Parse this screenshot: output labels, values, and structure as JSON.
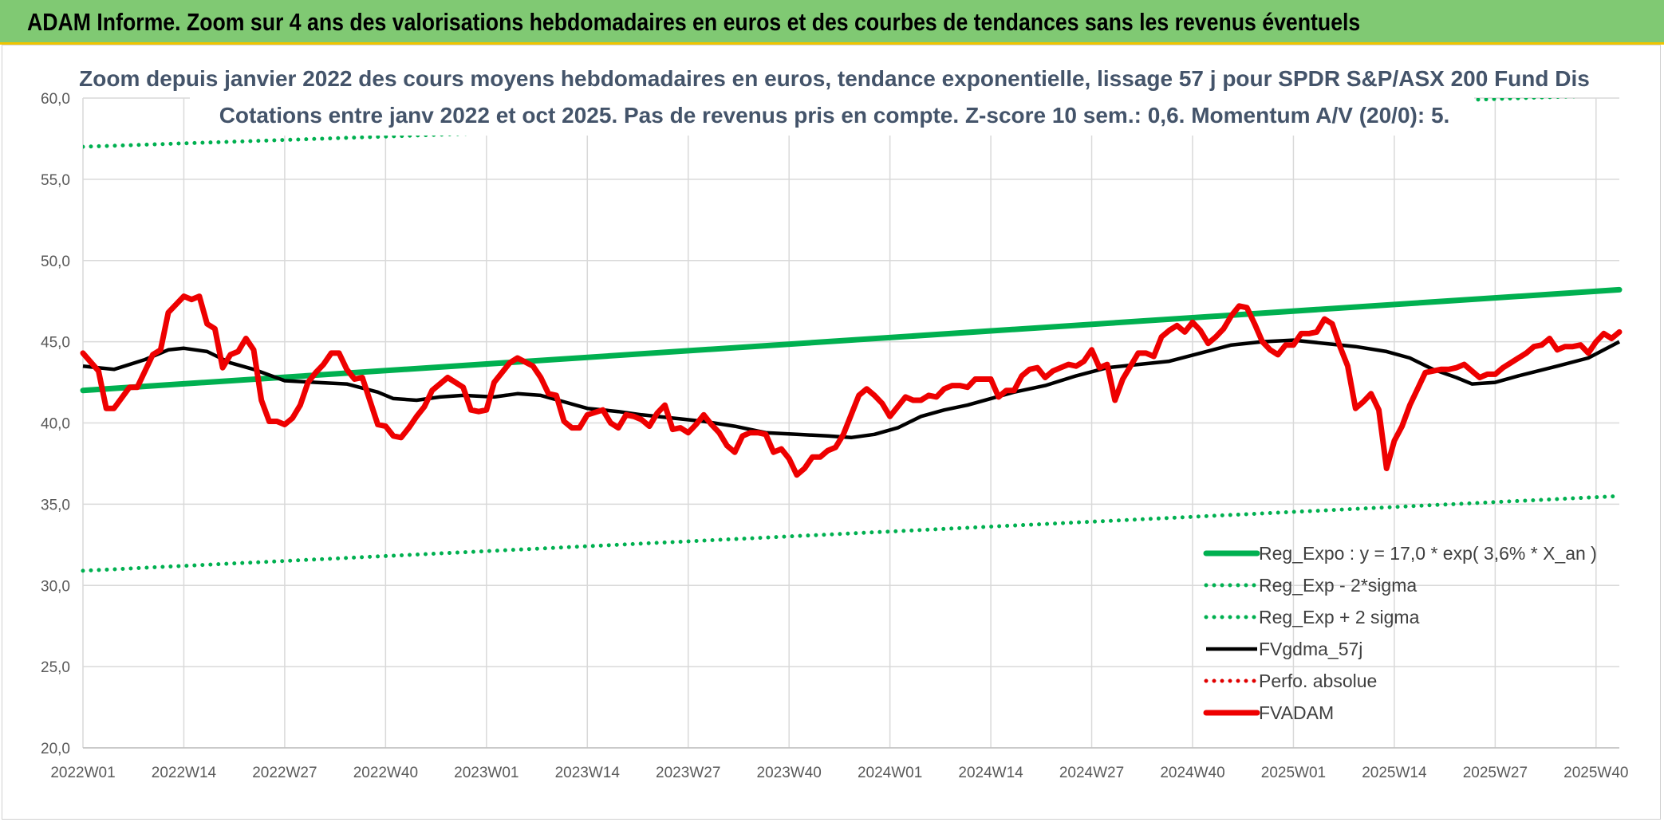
{
  "header": {
    "title": "ADAM Informe. Zoom sur 4 ans des valorisations hebdomadaires en euros et des courbes de tendances sans les revenus éventuels"
  },
  "chart_data": {
    "type": "line",
    "title_lines": [
      "Zoom depuis janvier 2022 des cours moyens hebdomadaires en euros, tendance exponentielle, lissage 57 j pour SPDR S&P/ASX 200 Fund Dis",
      "Cotations entre janv 2022 et oct 2025. Pas de revenus pris en compte. Z-score 10 sem.: 0,6. Momentum A/V (20/0): 5."
    ],
    "xlabel": "",
    "ylabel": "",
    "ylim": [
      20,
      60
    ],
    "y_ticks": [
      "20,0",
      "25,0",
      "30,0",
      "35,0",
      "40,0",
      "45,0",
      "50,0",
      "55,0",
      "60,0"
    ],
    "x_tick_labels": [
      "2022W01",
      "2022W14",
      "2022W27",
      "2022W40",
      "2023W01",
      "2023W14",
      "2023W27",
      "2023W40",
      "2024W01",
      "2024W14",
      "2024W27",
      "2024W40",
      "2025W01",
      "2025W14",
      "2025W27",
      "2025W40"
    ],
    "x_range_weeks": [
      0,
      198
    ],
    "grid": true,
    "legend_position": "bottom-right",
    "series": [
      {
        "name": "Reg_Expo : y = 17,0 * exp( 3,6% *  X_an )",
        "color": "#00b050",
        "style": "solid-thick",
        "linear_from_to": [
          [
            0,
            42.0
          ],
          [
            198,
            48.2
          ]
        ]
      },
      {
        "name": "Reg_Exp - 2*sigma",
        "color": "#00b050",
        "style": "dotted",
        "linear_from_to": [
          [
            0,
            30.9
          ],
          [
            198,
            35.5
          ]
        ]
      },
      {
        "name": "Reg_Exp + 2 sigma",
        "color": "#00b050",
        "style": "dotted",
        "linear_from_to": [
          [
            0,
            57.0
          ],
          [
            198,
            60.2
          ]
        ]
      },
      {
        "name": "FVgdma_57j",
        "color": "#000000",
        "style": "solid",
        "points": [
          [
            0,
            43.5
          ],
          [
            4,
            43.3
          ],
          [
            8,
            43.9
          ],
          [
            11,
            44.5
          ],
          [
            13,
            44.6
          ],
          [
            16,
            44.4
          ],
          [
            19,
            43.7
          ],
          [
            22,
            43.3
          ],
          [
            26,
            42.6
          ],
          [
            30,
            42.5
          ],
          [
            34,
            42.4
          ],
          [
            38,
            41.9
          ],
          [
            40,
            41.5
          ],
          [
            43,
            41.4
          ],
          [
            46,
            41.6
          ],
          [
            49,
            41.7
          ],
          [
            53,
            41.6
          ],
          [
            56,
            41.8
          ],
          [
            59,
            41.7
          ],
          [
            62,
            41.3
          ],
          [
            65,
            40.9
          ],
          [
            69,
            40.7
          ],
          [
            72,
            40.5
          ],
          [
            76,
            40.3
          ],
          [
            80,
            40.1
          ],
          [
            84,
            39.8
          ],
          [
            88,
            39.4
          ],
          [
            92,
            39.3
          ],
          [
            96,
            39.2
          ],
          [
            99,
            39.1
          ],
          [
            102,
            39.3
          ],
          [
            105,
            39.7
          ],
          [
            108,
            40.4
          ],
          [
            111,
            40.8
          ],
          [
            114,
            41.1
          ],
          [
            117,
            41.5
          ],
          [
            120,
            41.9
          ],
          [
            124,
            42.3
          ],
          [
            128,
            42.9
          ],
          [
            132,
            43.4
          ],
          [
            136,
            43.6
          ],
          [
            140,
            43.8
          ],
          [
            144,
            44.3
          ],
          [
            148,
            44.8
          ],
          [
            152,
            45.0
          ],
          [
            156,
            45.1
          ],
          [
            160,
            44.9
          ],
          [
            164,
            44.7
          ],
          [
            168,
            44.4
          ],
          [
            171,
            44.0
          ],
          [
            174,
            43.3
          ],
          [
            177,
            42.8
          ],
          [
            179,
            42.4
          ],
          [
            182,
            42.5
          ],
          [
            185,
            42.9
          ],
          [
            190,
            43.5
          ],
          [
            194,
            44.0
          ],
          [
            198,
            45.0
          ]
        ]
      },
      {
        "name": "Perfo. absolue",
        "color": "#e00000",
        "style": "dotted"
      },
      {
        "name": "FVADAM",
        "color": "#ee0000",
        "style": "solid-thick",
        "points": [
          [
            0,
            44.3
          ],
          [
            2,
            43.2
          ],
          [
            3,
            40.9
          ],
          [
            4,
            40.9
          ],
          [
            6,
            42.2
          ],
          [
            7,
            42.2
          ],
          [
            9,
            44.2
          ],
          [
            10,
            44.5
          ],
          [
            11,
            46.8
          ],
          [
            13,
            47.8
          ],
          [
            14,
            47.6
          ],
          [
            15,
            47.8
          ],
          [
            16,
            46.1
          ],
          [
            17,
            45.8
          ],
          [
            18,
            43.4
          ],
          [
            19,
            44.2
          ],
          [
            20,
            44.4
          ],
          [
            21,
            45.2
          ],
          [
            22,
            44.5
          ],
          [
            23,
            41.4
          ],
          [
            24,
            40.1
          ],
          [
            25,
            40.1
          ],
          [
            26,
            39.9
          ],
          [
            27,
            40.3
          ],
          [
            28,
            41.1
          ],
          [
            29,
            42.5
          ],
          [
            30,
            43.1
          ],
          [
            31,
            43.6
          ],
          [
            32,
            44.3
          ],
          [
            33,
            44.3
          ],
          [
            34,
            43.3
          ],
          [
            35,
            42.7
          ],
          [
            36,
            42.8
          ],
          [
            38,
            39.9
          ],
          [
            39,
            39.8
          ],
          [
            40,
            39.2
          ],
          [
            41,
            39.1
          ],
          [
            42,
            39.7
          ],
          [
            43,
            40.4
          ],
          [
            44,
            41.0
          ],
          [
            45,
            42.0
          ],
          [
            47,
            42.8
          ],
          [
            49,
            42.2
          ],
          [
            50,
            40.8
          ],
          [
            51,
            40.7
          ],
          [
            52,
            40.8
          ],
          [
            53,
            42.5
          ],
          [
            55,
            43.7
          ],
          [
            56,
            44.0
          ],
          [
            58,
            43.5
          ],
          [
            59,
            42.8
          ],
          [
            60,
            41.8
          ],
          [
            61,
            41.7
          ],
          [
            62,
            40.1
          ],
          [
            63,
            39.7
          ],
          [
            64,
            39.7
          ],
          [
            65,
            40.5
          ],
          [
            67,
            40.8
          ],
          [
            68,
            40.0
          ],
          [
            69,
            39.7
          ],
          [
            70,
            40.5
          ],
          [
            71,
            40.4
          ],
          [
            72,
            40.2
          ],
          [
            73,
            39.8
          ],
          [
            74,
            40.6
          ],
          [
            75,
            41.1
          ],
          [
            76,
            39.6
          ],
          [
            77,
            39.7
          ],
          [
            78,
            39.4
          ],
          [
            79,
            39.9
          ],
          [
            80,
            40.5
          ],
          [
            81,
            39.9
          ],
          [
            82,
            39.4
          ],
          [
            83,
            38.6
          ],
          [
            84,
            38.2
          ],
          [
            85,
            39.2
          ],
          [
            86,
            39.4
          ],
          [
            87,
            39.4
          ],
          [
            88,
            39.3
          ],
          [
            89,
            38.2
          ],
          [
            90,
            38.4
          ],
          [
            91,
            37.8
          ],
          [
            92,
            36.8
          ],
          [
            93,
            37.2
          ],
          [
            94,
            37.9
          ],
          [
            95,
            37.9
          ],
          [
            96,
            38.3
          ],
          [
            97,
            38.5
          ],
          [
            98,
            39.3
          ],
          [
            99,
            40.5
          ],
          [
            100,
            41.7
          ],
          [
            101,
            42.1
          ],
          [
            102,
            41.7
          ],
          [
            103,
            41.2
          ],
          [
            104,
            40.4
          ],
          [
            105,
            41.0
          ],
          [
            106,
            41.6
          ],
          [
            107,
            41.4
          ],
          [
            108,
            41.4
          ],
          [
            109,
            41.7
          ],
          [
            110,
            41.6
          ],
          [
            111,
            42.1
          ],
          [
            112,
            42.3
          ],
          [
            113,
            42.3
          ],
          [
            114,
            42.2
          ],
          [
            115,
            42.7
          ],
          [
            116,
            42.7
          ],
          [
            117,
            42.7
          ],
          [
            118,
            41.6
          ],
          [
            119,
            42.0
          ],
          [
            120,
            42.0
          ],
          [
            121,
            42.9
          ],
          [
            122,
            43.3
          ],
          [
            123,
            43.4
          ],
          [
            124,
            42.8
          ],
          [
            125,
            43.2
          ],
          [
            126,
            43.4
          ],
          [
            127,
            43.6
          ],
          [
            128,
            43.5
          ],
          [
            129,
            43.8
          ],
          [
            130,
            44.5
          ],
          [
            131,
            43.4
          ],
          [
            132,
            43.6
          ],
          [
            133,
            41.4
          ],
          [
            134,
            42.7
          ],
          [
            135,
            43.5
          ],
          [
            136,
            44.3
          ],
          [
            137,
            44.3
          ],
          [
            138,
            44.1
          ],
          [
            139,
            45.3
          ],
          [
            140,
            45.7
          ],
          [
            141,
            46.0
          ],
          [
            142,
            45.6
          ],
          [
            143,
            46.2
          ],
          [
            144,
            45.7
          ],
          [
            145,
            44.9
          ],
          [
            146,
            45.3
          ],
          [
            147,
            45.8
          ],
          [
            148,
            46.6
          ],
          [
            149,
            47.2
          ],
          [
            150,
            47.1
          ],
          [
            151,
            46.1
          ],
          [
            152,
            45.0
          ],
          [
            153,
            44.5
          ],
          [
            154,
            44.2
          ],
          [
            155,
            44.8
          ],
          [
            156,
            44.8
          ],
          [
            157,
            45.5
          ],
          [
            158,
            45.5
          ],
          [
            159,
            45.6
          ],
          [
            160,
            46.4
          ],
          [
            161,
            46.1
          ],
          [
            162,
            44.7
          ],
          [
            163,
            43.5
          ],
          [
            164,
            40.9
          ],
          [
            165,
            41.3
          ],
          [
            166,
            41.8
          ],
          [
            167,
            40.8
          ],
          [
            168,
            37.2
          ],
          [
            169,
            38.9
          ],
          [
            170,
            39.8
          ],
          [
            171,
            41.1
          ],
          [
            172,
            42.1
          ],
          [
            173,
            43.1
          ],
          [
            174,
            43.2
          ],
          [
            175,
            43.3
          ],
          [
            176,
            43.3
          ],
          [
            177,
            43.4
          ],
          [
            178,
            43.6
          ],
          [
            179,
            43.2
          ],
          [
            180,
            42.8
          ],
          [
            181,
            43.0
          ],
          [
            182,
            43.0
          ],
          [
            183,
            43.4
          ],
          [
            184,
            43.7
          ],
          [
            185,
            44.0
          ],
          [
            186,
            44.3
          ],
          [
            187,
            44.7
          ],
          [
            188,
            44.8
          ],
          [
            189,
            45.2
          ],
          [
            190,
            44.5
          ],
          [
            191,
            44.7
          ],
          [
            192,
            44.7
          ],
          [
            193,
            44.8
          ],
          [
            194,
            44.3
          ],
          [
            195,
            45.0
          ],
          [
            196,
            45.5
          ],
          [
            197,
            45.2
          ],
          [
            198,
            45.6
          ]
        ]
      }
    ]
  }
}
